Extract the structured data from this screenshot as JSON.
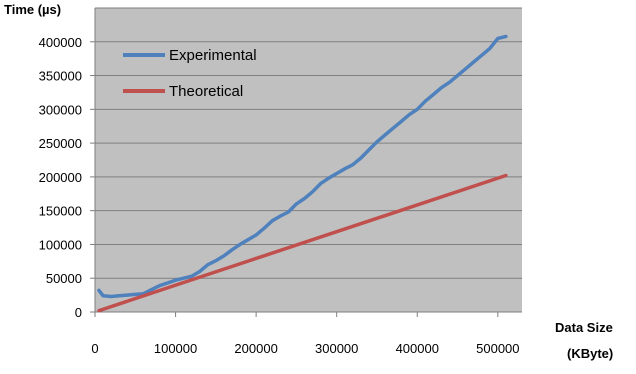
{
  "chart_data": {
    "type": "line",
    "title": "",
    "ylabel": "Time (µs)",
    "xlabel_line1": "Data Size",
    "xlabel_line2": "(KByte)",
    "xlim": [
      0,
      530000
    ],
    "ylim": [
      0,
      450000
    ],
    "x_ticks": [
      0,
      100000,
      200000,
      300000,
      400000,
      500000
    ],
    "x_tick_labels": [
      "0",
      "100000",
      "200000",
      "300000",
      "400000",
      "500000"
    ],
    "y_ticks": [
      0,
      50000,
      100000,
      150000,
      200000,
      250000,
      300000,
      350000,
      400000
    ],
    "y_tick_labels": [
      "0",
      "50000",
      "100000",
      "150000",
      "200000",
      "250000",
      "300000",
      "350000",
      "400000"
    ],
    "grid": true,
    "legend_position": "top-left",
    "plot_background": "#c0c0c0",
    "series": [
      {
        "name": "Experimental",
        "color": "#4f81bd",
        "x": [
          5000,
          10000,
          20000,
          30000,
          40000,
          50000,
          60000,
          70000,
          80000,
          90000,
          100000,
          110000,
          120000,
          130000,
          140000,
          150000,
          160000,
          170000,
          180000,
          190000,
          200000,
          210000,
          220000,
          230000,
          240000,
          250000,
          260000,
          270000,
          280000,
          290000,
          300000,
          310000,
          320000,
          330000,
          340000,
          350000,
          360000,
          370000,
          380000,
          390000,
          400000,
          410000,
          420000,
          430000,
          440000,
          450000,
          460000,
          470000,
          480000,
          490000,
          500000,
          510000
        ],
        "y": [
          32000,
          24000,
          23000,
          24000,
          25000,
          26000,
          27000,
          33000,
          39000,
          43000,
          47000,
          50000,
          53000,
          60000,
          70000,
          76000,
          83000,
          92000,
          100000,
          107000,
          114000,
          124000,
          135000,
          142000,
          148000,
          160000,
          168000,
          178000,
          190000,
          198000,
          205000,
          212000,
          218000,
          228000,
          240000,
          252000,
          262000,
          272000,
          282000,
          292000,
          300000,
          312000,
          322000,
          332000,
          340000,
          350000,
          360000,
          370000,
          380000,
          390000,
          405000,
          408000
        ]
      },
      {
        "name": "Theoretical",
        "color": "#c0504d",
        "x": [
          5000,
          510000
        ],
        "y": [
          2000,
          202000
        ]
      }
    ]
  }
}
